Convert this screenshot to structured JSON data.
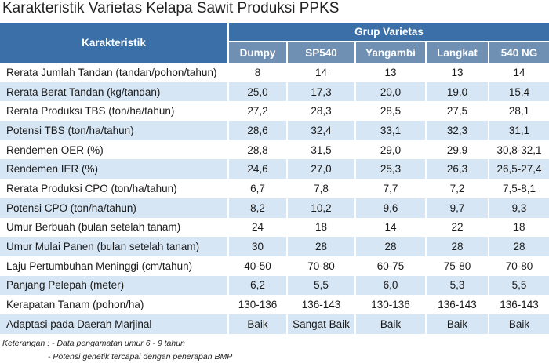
{
  "title": "Karakteristik Varietas Kelapa Sawit Produksi PPKS",
  "chart_data": {
    "type": "table",
    "header": {
      "characteristic_label": "Karakteristik",
      "group_label": "Grup Varietas",
      "varieties": [
        "Dumpy",
        "SP540",
        "Yangambi",
        "Langkat",
        "540 NG"
      ]
    },
    "rows": [
      {
        "label": "Rerata Jumlah Tandan (tandan/pohon/tahun)",
        "values": [
          "8",
          "14",
          "13",
          "13",
          "14"
        ]
      },
      {
        "label": "Rerata Berat Tandan (kg/tandan)",
        "values": [
          "25,0",
          "17,3",
          "20,0",
          "19,0",
          "15,4"
        ]
      },
      {
        "label": "Rerata Produksi TBS (ton/ha/tahun)",
        "values": [
          "27,2",
          "28,3",
          "28,5",
          "27,5",
          "28,1"
        ]
      },
      {
        "label": "Potensi TBS (ton/ha/tahun)",
        "values": [
          "28,6",
          "32,4",
          "33,1",
          "32,3",
          "31,1"
        ]
      },
      {
        "label": "Rendemen OER  (%)",
        "values": [
          "28,8",
          "31,5",
          "29,0",
          "29,9",
          "30,8-32,1"
        ]
      },
      {
        "label": "Rendemen IER  (%)",
        "values": [
          "24,6",
          "27,0",
          "25,3",
          "26,3",
          "26,5-27,4"
        ]
      },
      {
        "label": "Rerata Produksi CPO  (ton/ha/tahun)",
        "values": [
          "6,7",
          "7,8",
          "7,7",
          "7,2",
          "7,5-8,1"
        ]
      },
      {
        "label": "Potensi CPO  (ton/ha/tahun)",
        "values": [
          "8,2",
          "10,2",
          "9,6",
          "9,7",
          "9,3"
        ]
      },
      {
        "label": "Umur Berbuah  (bulan setelah tanam)",
        "values": [
          "24",
          "18",
          "14",
          "22",
          "18"
        ]
      },
      {
        "label": "Umur Mulai Panen  (bulan setelah tanam)",
        "values": [
          "30",
          "28",
          "28",
          "28",
          "28"
        ]
      },
      {
        "label": "Laju Pertumbuhan Meninggi  (cm/tahun)",
        "values": [
          "40-50",
          "70-80",
          "60-75",
          "75-80",
          "70-80"
        ]
      },
      {
        "label": "Panjang Pelepah (meter)",
        "values": [
          "6,2",
          "5,5",
          "6,0",
          "5,3",
          "5,5"
        ]
      },
      {
        "label": "Kerapatan Tanam (pohon/ha)",
        "values": [
          "130-136",
          "136-143",
          "130-136",
          "136-143",
          "136-143"
        ]
      },
      {
        "label": "Adaptasi pada Daerah Marjinal",
        "values": [
          "Baik",
          "Sangat Baik",
          "Baik",
          "Baik",
          "Baik"
        ]
      }
    ]
  },
  "notes": {
    "line1": "Keterangan : - Data pengamatan umur 6 - 9 tahun",
    "line2": "- Potensi genetik tercapai dengan penerapan BMP"
  },
  "colors": {
    "header_dark": "#3a6fa8",
    "header_sub": "#6f8fb3",
    "row_stripe": "#d7e6f4"
  }
}
